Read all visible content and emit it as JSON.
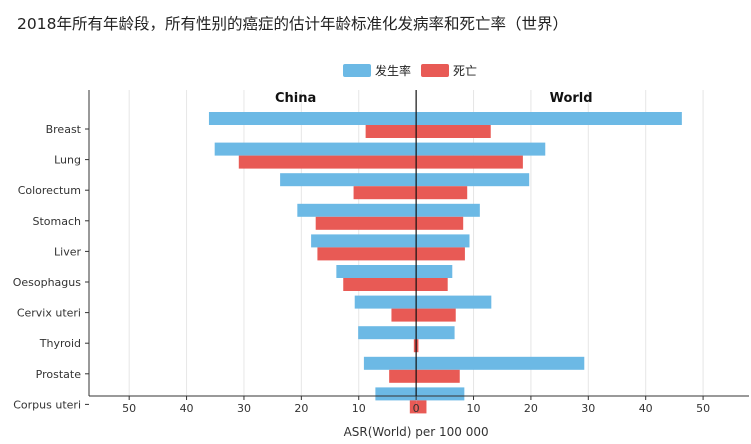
{
  "title": "2018年所有年龄段，所有性别的癌症的估计年龄标准化发病率和死亡率（世界）",
  "legend": [
    {
      "label": "发生率",
      "color": "#6cb9e5"
    },
    {
      "label": "死亡",
      "color": "#e85a55"
    }
  ],
  "chart_data": {
    "type": "bar",
    "orientation": "horizontal",
    "layout": "back-to-back",
    "xlabel": "ASR(World) per 100 000",
    "xlim": [
      -57,
      58
    ],
    "x_ticks": [
      -50,
      -40,
      -30,
      -20,
      -10,
      0,
      10,
      20,
      30,
      40,
      50
    ],
    "x_tick_labels": [
      "50",
      "40",
      "30",
      "20",
      "10",
      "0",
      "10",
      "20",
      "30",
      "40",
      "50"
    ],
    "grid": "vertical",
    "legend_position": "top",
    "panels": [
      {
        "label": "China",
        "side": "left"
      },
      {
        "label": "World",
        "side": "right"
      }
    ],
    "categories": [
      "Breast",
      "Lung",
      "Colorectum",
      "Stomach",
      "Liver",
      "Oesophagus",
      "Cervix uteri",
      "Thyroid",
      "Prostate",
      "Corpus uteri"
    ],
    "series": [
      {
        "name": "发生率",
        "panel": "China",
        "color": "#6cb9e5",
        "values": [
          36.1,
          35.1,
          23.7,
          20.7,
          18.3,
          13.9,
          10.7,
          10.1,
          9.1,
          7.1
        ]
      },
      {
        "name": "死亡",
        "panel": "China",
        "color": "#e85a55",
        "values": [
          8.8,
          30.9,
          10.9,
          17.5,
          17.2,
          12.7,
          4.3,
          0.4,
          4.7,
          1.1
        ]
      },
      {
        "name": "发生率",
        "panel": "World",
        "color": "#6cb9e5",
        "values": [
          46.3,
          22.5,
          19.7,
          11.1,
          9.3,
          6.3,
          13.1,
          6.7,
          29.3,
          8.4
        ]
      },
      {
        "name": "死亡",
        "panel": "World",
        "color": "#e85a55",
        "values": [
          13.0,
          18.6,
          8.9,
          8.2,
          8.5,
          5.5,
          6.9,
          0.4,
          7.6,
          1.8
        ]
      }
    ]
  }
}
